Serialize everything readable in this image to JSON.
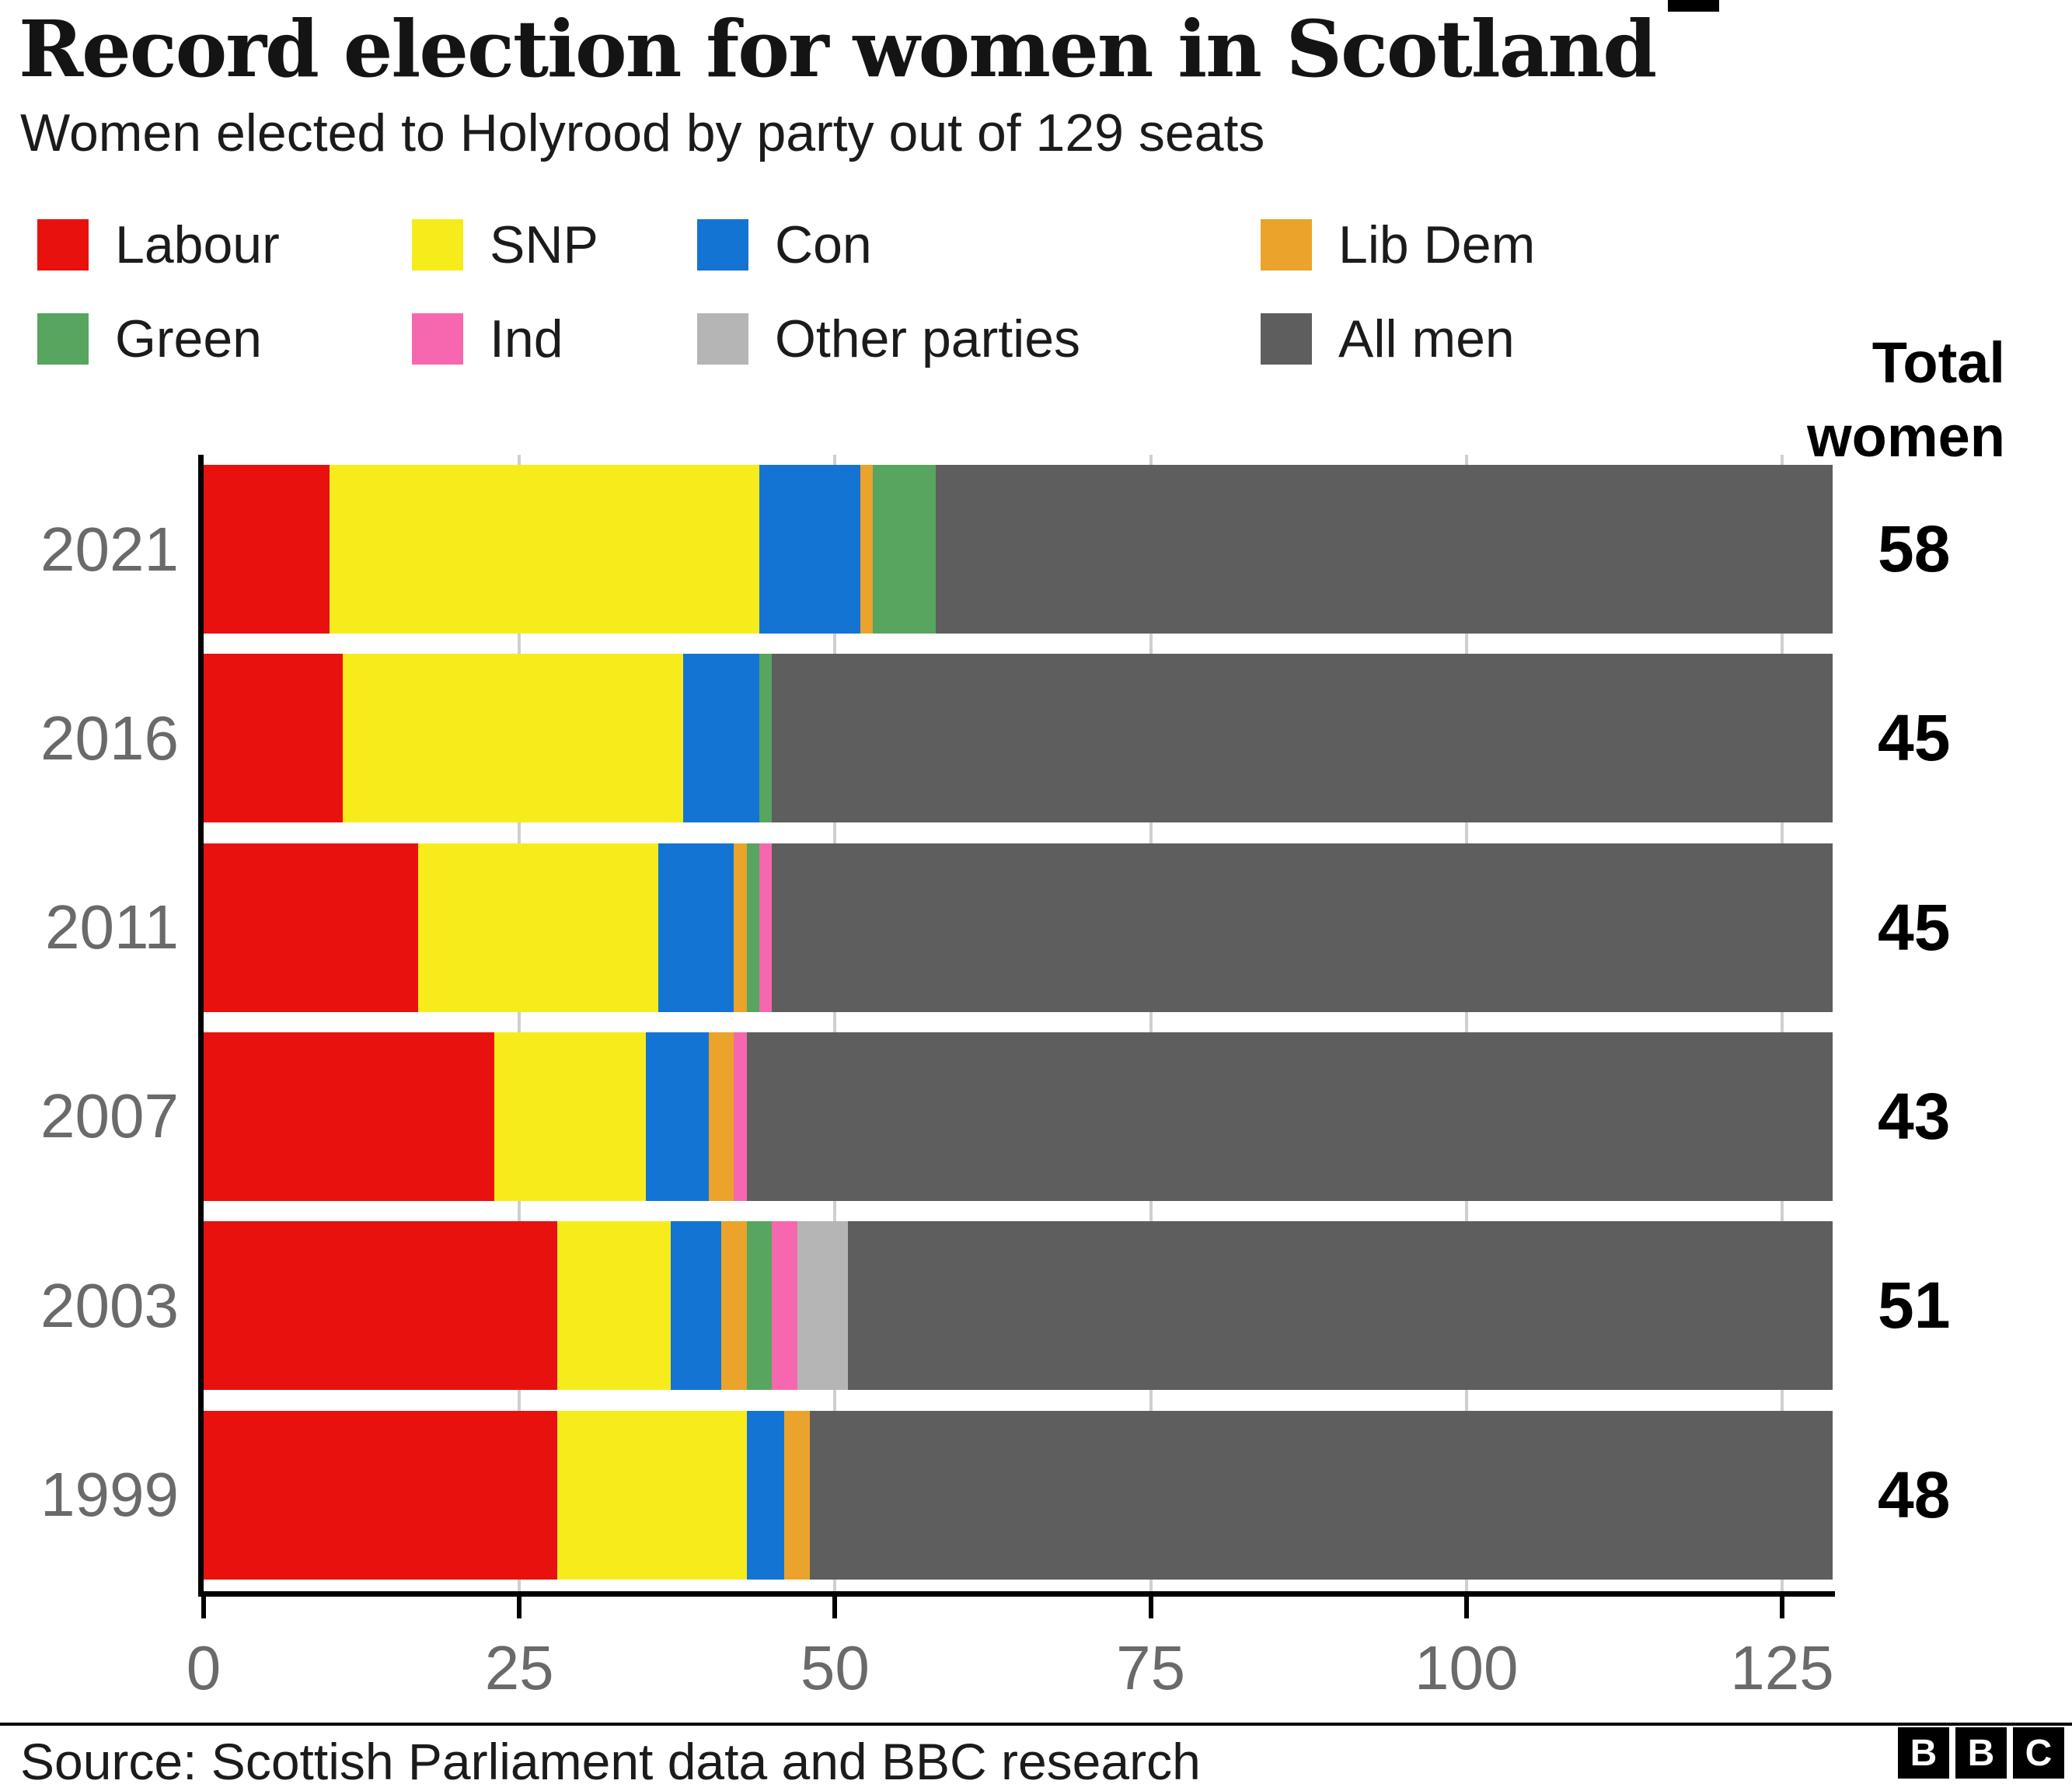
{
  "header": {
    "title": "Record election for women in Scotland",
    "subtitle": "Women elected to Holyrood by party out of 129 seats"
  },
  "colors": {
    "Labour": "#e8110d",
    "SNP": "#f7ec1b",
    "Con": "#1474d4",
    "Lib Dem": "#eba32b",
    "Green": "#57a55e",
    "Ind": "#f767af",
    "Other parties": "#b5b5b5",
    "All men": "#5e5e5e"
  },
  "legend": {
    "items": [
      "Labour",
      "SNP",
      "Con",
      "Lib Dem",
      "Green",
      "Ind",
      "Other parties",
      "All men"
    ]
  },
  "totals_column": {
    "header_line1": "Total",
    "header_line2": "women"
  },
  "chart_data": {
    "type": "bar",
    "orientation": "horizontal",
    "stacked": true,
    "title": "Record election for women in Scotland",
    "subtitle": "Women elected to Holyrood by party out of 129 seats",
    "total_seats": 129,
    "categories": [
      "2021",
      "2016",
      "2011",
      "2007",
      "2003",
      "1999"
    ],
    "series": [
      {
        "name": "Labour",
        "values": [
          10,
          11,
          17,
          23,
          28,
          28
        ]
      },
      {
        "name": "SNP",
        "values": [
          34,
          27,
          19,
          12,
          9,
          15
        ]
      },
      {
        "name": "Con",
        "values": [
          8,
          6,
          6,
          5,
          4,
          3
        ]
      },
      {
        "name": "Lib Dem",
        "values": [
          1,
          0,
          1,
          2,
          2,
          2
        ]
      },
      {
        "name": "Green",
        "values": [
          5,
          1,
          1,
          0,
          2,
          0
        ]
      },
      {
        "name": "Ind",
        "values": [
          0,
          0,
          1,
          1,
          2,
          0
        ]
      },
      {
        "name": "Other parties",
        "values": [
          0,
          0,
          0,
          0,
          4,
          0
        ]
      },
      {
        "name": "All men",
        "values": [
          71,
          84,
          84,
          86,
          78,
          81
        ]
      }
    ],
    "totals_women": [
      "58",
      "45",
      "45",
      "43",
      "51",
      "48"
    ],
    "x_ticks": [
      0,
      25,
      50,
      75,
      100,
      125
    ],
    "xlim": [
      0,
      129
    ],
    "grid": true,
    "legend_position": "top"
  },
  "footer": {
    "source": "Source: Scottish Parliament data and BBC research",
    "logo_letters": [
      "B",
      "B",
      "C"
    ]
  }
}
